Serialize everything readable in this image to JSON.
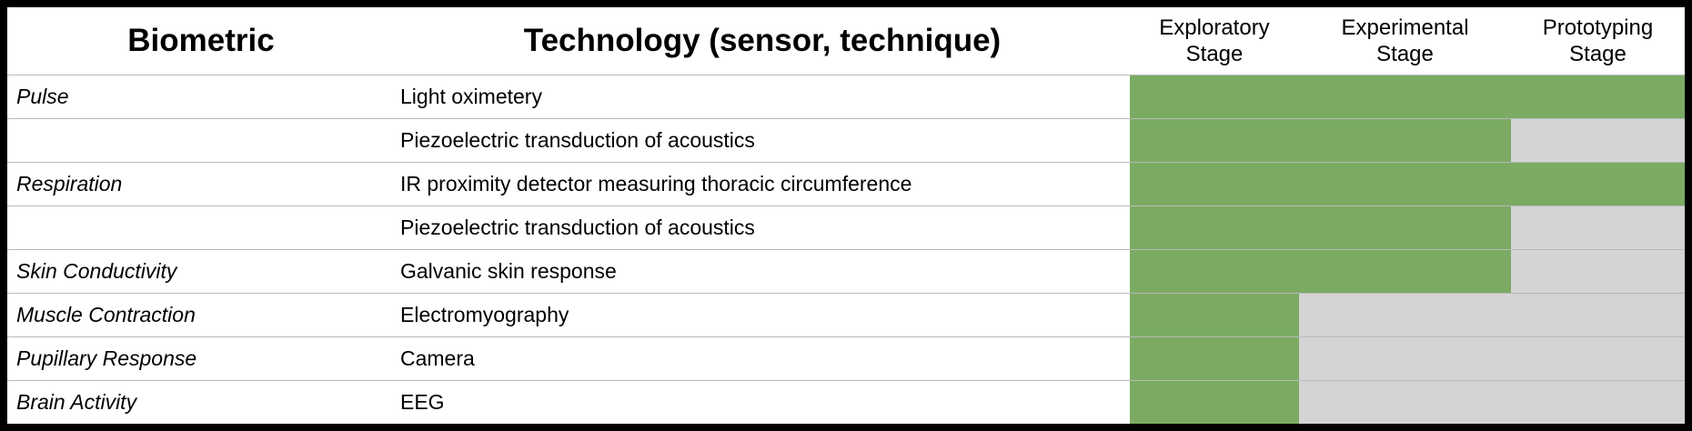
{
  "header": {
    "biometric": "Biometric",
    "technology": "Technology (sensor, technique)",
    "stages": [
      {
        "line1": "Exploratory",
        "line2": "Stage"
      },
      {
        "line1": "Experimental",
        "line2": "Stage"
      },
      {
        "line1": "Prototyping",
        "line2": "Stage"
      }
    ]
  },
  "colors": {
    "reached": "#7bab63",
    "not_reached": "#d4d4d4"
  },
  "rows": [
    {
      "biometric": "Pulse",
      "technology": "Light oximetery",
      "stages_reached": 3
    },
    {
      "biometric": "",
      "technology": "Piezoelectric transduction of acoustics",
      "stages_reached": 2
    },
    {
      "biometric": "Respiration",
      "technology": "IR proximity detector measuring thoracic circumference",
      "stages_reached": 3
    },
    {
      "biometric": "",
      "technology": "Piezoelectric transduction of acoustics",
      "stages_reached": 2
    },
    {
      "biometric": "Skin Conductivity",
      "technology": "Galvanic skin response",
      "stages_reached": 2
    },
    {
      "biometric": "Muscle Contraction",
      "technology": "Electromyography",
      "stages_reached": 1
    },
    {
      "biometric": "Pupillary Response",
      "technology": "Camera",
      "stages_reached": 1
    },
    {
      "biometric": "Brain Activity",
      "technology": "EEG",
      "stages_reached": 1
    }
  ]
}
